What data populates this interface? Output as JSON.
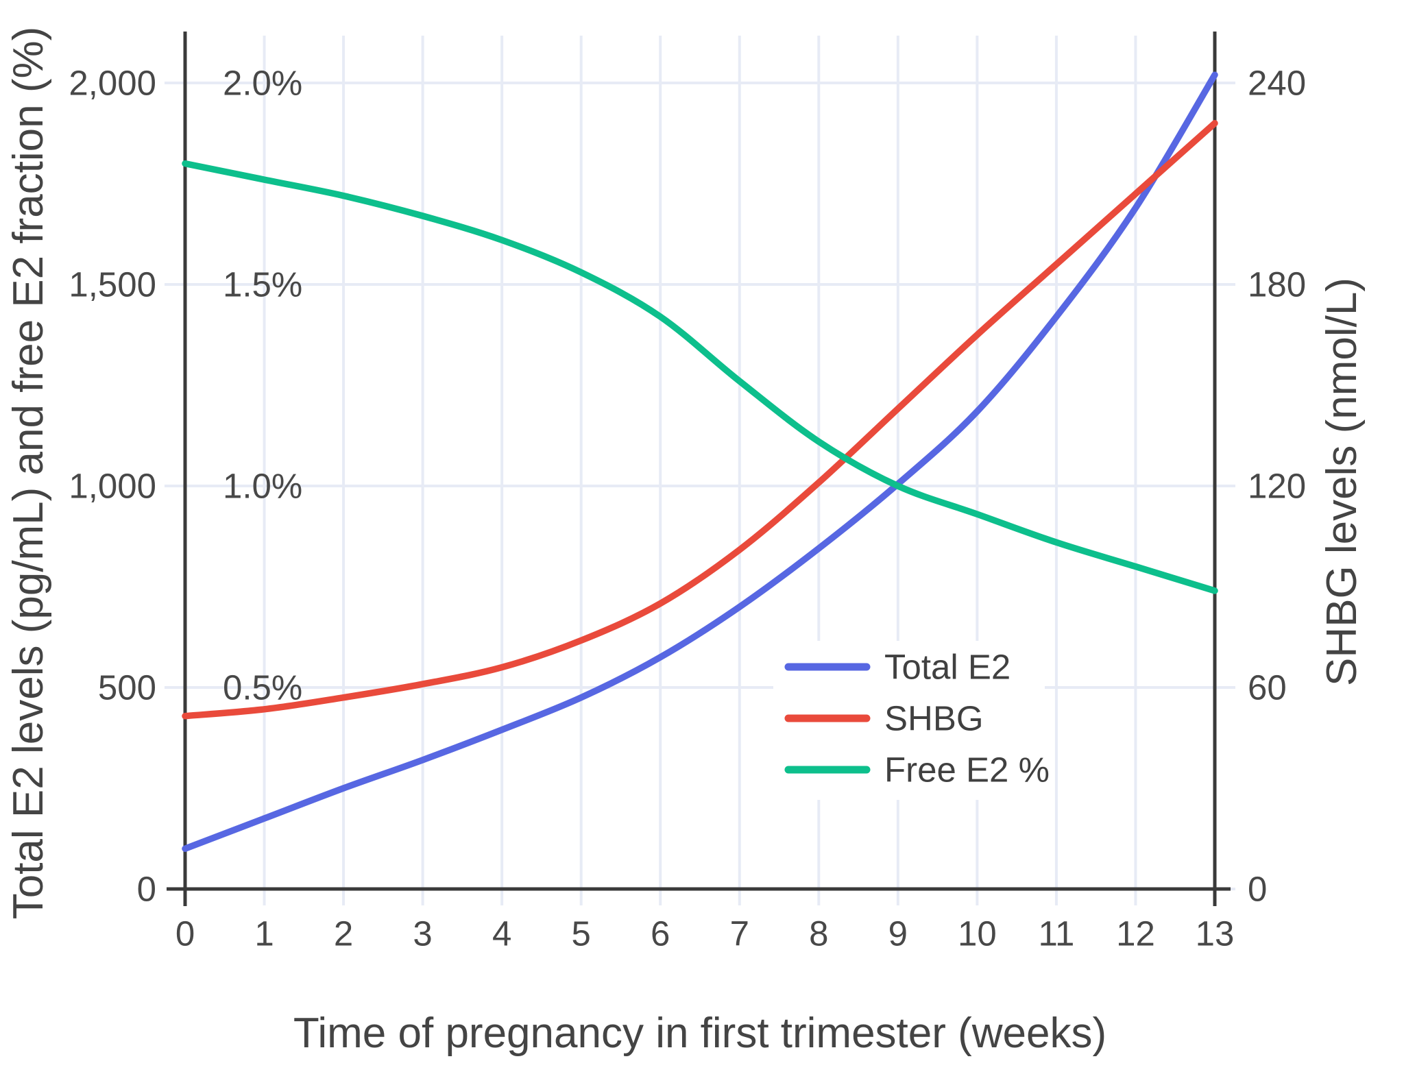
{
  "chart_data": {
    "type": "line",
    "title": "",
    "xlabel": "Time of pregnancy in first trimester (weeks)",
    "ylabel_left": "Total E2 levels (pg/mL) and free E2 fraction (%)",
    "ylabel_right": "SHBG levels (nmol/L)",
    "x": [
      0,
      1,
      2,
      3,
      4,
      5,
      6,
      7,
      8,
      9,
      10,
      11,
      12,
      13
    ],
    "x_range": [
      0,
      13
    ],
    "y_left_range": [
      0,
      2000
    ],
    "y_right_range": [
      0,
      240
    ],
    "y_percent_range": [
      0,
      2.0
    ],
    "y_left_ticks": [
      {
        "value": 0,
        "label": "0"
      },
      {
        "value": 500,
        "label": "500"
      },
      {
        "value": 1000,
        "label": "1,000"
      },
      {
        "value": 1500,
        "label": "1,500"
      },
      {
        "value": 2000,
        "label": "2,000"
      }
    ],
    "y_percent_ticks": [
      {
        "value": 0.5,
        "label": "0.5%"
      },
      {
        "value": 1.0,
        "label": "1.0%"
      },
      {
        "value": 1.5,
        "label": "1.5%"
      },
      {
        "value": 2.0,
        "label": "2.0%"
      }
    ],
    "y_right_ticks": [
      {
        "value": 0,
        "label": "0"
      },
      {
        "value": 60,
        "label": "60"
      },
      {
        "value": 120,
        "label": "120"
      },
      {
        "value": 180,
        "label": "180"
      },
      {
        "value": 240,
        "label": "240"
      }
    ],
    "grid": true,
    "legend_position": "inside-right-middle",
    "series": [
      {
        "name": "Total E2",
        "axis": "left",
        "unit": "pg/mL",
        "color": "#5767e2",
        "values": [
          100,
          175,
          250,
          320,
          395,
          475,
          575,
          700,
          845,
          1005,
          1185,
          1420,
          1690,
          2020
        ]
      },
      {
        "name": "SHBG",
        "axis": "right",
        "unit": "nmol/L",
        "color": "#e94a3b",
        "values": [
          51.5,
          53.5,
          57,
          61,
          66,
          74,
          85,
          101,
          121,
          143,
          165,
          186,
          207,
          228
        ]
      },
      {
        "name": "Free E2 %",
        "axis": "percent",
        "unit": "%",
        "color": "#0dbf8c",
        "values": [
          1.8,
          1.76,
          1.72,
          1.67,
          1.61,
          1.53,
          1.42,
          1.26,
          1.11,
          1.0,
          0.93,
          0.86,
          0.8,
          0.74
        ]
      }
    ],
    "colors": {
      "gridline": "#e7ebf5",
      "axis_line": "#3a3a3a",
      "text": "#484848",
      "legend_background": "#ffffff"
    }
  }
}
